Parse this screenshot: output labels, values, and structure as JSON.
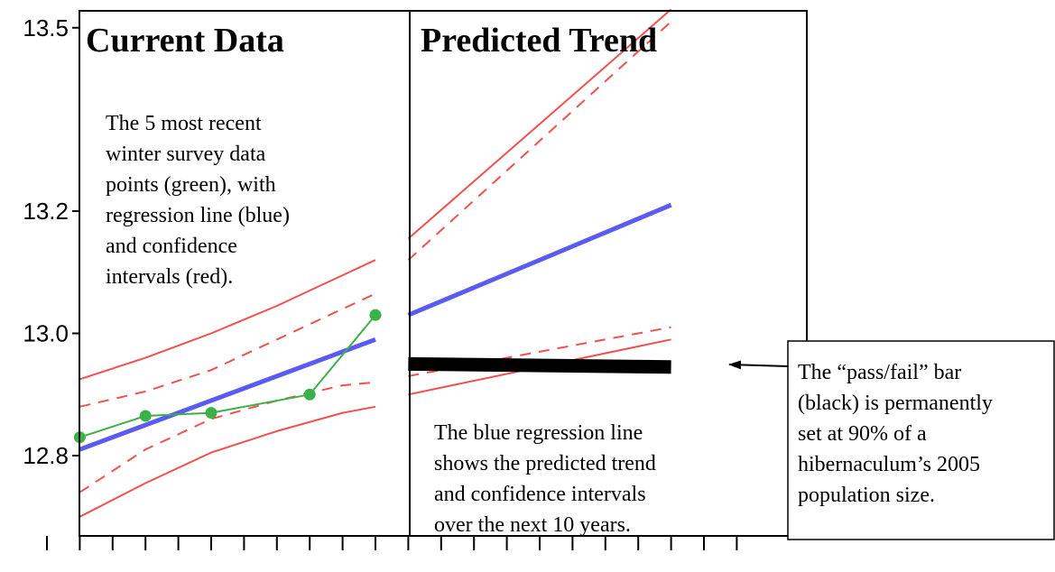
{
  "chart_data": {
    "type": "line",
    "panels": [
      {
        "title": "Current Data"
      },
      {
        "title": "Predicted Trend"
      }
    ],
    "y_ticks": [
      12.8,
      13.0,
      13.2,
      13.5
    ],
    "y_tick_labels": [
      "12.8",
      "13.0",
      "13.2",
      "13.5"
    ],
    "ylim": [
      12.6,
      13.64
    ],
    "x_range": [
      0,
      21
    ],
    "x_tick_count": 22,
    "grid": false,
    "series": [
      {
        "key": "green",
        "color": "#3cb14a",
        "x": [
          1,
          3,
          5,
          8,
          10
        ],
        "y": [
          12.83,
          12.865,
          12.87,
          12.9,
          13.03
        ]
      },
      {
        "key": "blue",
        "color": "#5b5bef",
        "x": [
          1,
          10
        ],
        "y": [
          12.81,
          12.99
        ]
      },
      {
        "key": "red-upper",
        "color": "#f05050",
        "x": [
          1,
          3,
          5,
          7,
          9,
          10
        ],
        "y": [
          12.925,
          12.96,
          13.0,
          13.045,
          13.095,
          13.12
        ]
      },
      {
        "key": "red-lower",
        "color": "#f05050",
        "x": [
          1,
          3,
          5,
          7,
          9,
          10
        ],
        "y": [
          12.7,
          12.755,
          12.805,
          12.84,
          12.87,
          12.88
        ]
      },
      {
        "key": "red-dash-upper",
        "color": "#f05050",
        "x": [
          1,
          3,
          5,
          7,
          9,
          10
        ],
        "y": [
          12.88,
          12.905,
          12.94,
          12.99,
          13.04,
          13.065
        ]
      },
      {
        "key": "red-dash-lower",
        "color": "#f05050",
        "x": [
          1,
          3,
          5,
          7,
          9,
          10
        ],
        "y": [
          12.74,
          12.81,
          12.86,
          12.89,
          12.915,
          12.92
        ]
      },
      {
        "key": "blue-predicted",
        "color": "#5b5bef",
        "x": [
          11,
          19
        ],
        "y": [
          13.03,
          13.21
        ]
      },
      {
        "key": "red-upper-predicted",
        "color": "#f05050",
        "x": [
          11,
          19
        ],
        "y": [
          13.155,
          13.53
        ]
      },
      {
        "key": "red-dash-upper-predicted",
        "color": "#f05050",
        "x": [
          11,
          19
        ],
        "y": [
          13.12,
          13.51
        ]
      },
      {
        "key": "red-dash-lower-predicted",
        "color": "#f05050",
        "x": [
          11,
          19
        ],
        "y": [
          12.93,
          13.01
        ]
      },
      {
        "key": "red-lower-predicted",
        "color": "#f05050",
        "x": [
          11,
          19
        ],
        "y": [
          12.9,
          12.99
        ]
      },
      {
        "key": "pass-fail-bar",
        "color": "#000000",
        "x": [
          11,
          19
        ],
        "y": [
          12.95,
          12.945
        ]
      }
    ],
    "annotations": {
      "current_note": [
        "The 5 most recent",
        "winter survey data",
        "points (green), with",
        "regression line (blue)",
        "and confidence",
        "intervals (red)."
      ],
      "predicted_note": [
        "The blue regression line",
        "shows the predicted trend",
        "and confidence intervals",
        "over the next 10 years."
      ],
      "passfail_note": [
        "The “pass/fail” bar",
        "(black) is permanently",
        "set at 90% of a",
        "hibernaculum’s 2005",
        "population size."
      ]
    }
  }
}
